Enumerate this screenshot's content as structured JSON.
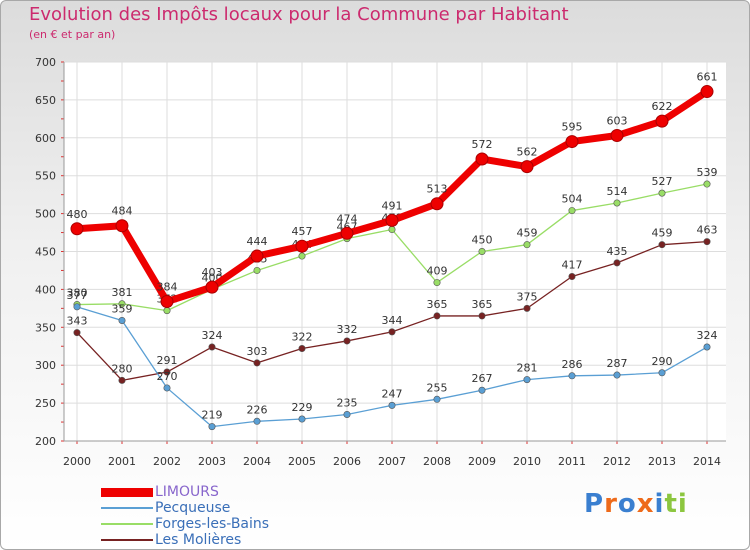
{
  "header": {
    "title": "Evolution des Impôts locaux pour la Commune par Habitant",
    "subtitle": "(en € et par an)"
  },
  "logo": {
    "text": "Proxiti"
  },
  "colors": {
    "title": "#cc2a6e",
    "limours": "#ee0000",
    "pecqueuse": "#5a9fd4",
    "forges": "#99dd66",
    "molieres": "#772222",
    "grid": "#dddddd"
  },
  "chart_data": {
    "type": "line",
    "title": "Evolution des Impôts locaux pour la Commune par Habitant",
    "subtitle": "(en € et par an)",
    "xlabel": "",
    "ylabel": "",
    "x": [
      "2000",
      "2001",
      "2002",
      "2003",
      "2004",
      "2005",
      "2006",
      "2007",
      "2008",
      "2009",
      "2010",
      "2011",
      "2012",
      "2013",
      "2014"
    ],
    "ylim": [
      200,
      700
    ],
    "yticks": [
      200,
      250,
      300,
      350,
      400,
      450,
      500,
      550,
      600,
      650,
      700
    ],
    "grid": true,
    "legend_position": "bottom-left",
    "series": [
      {
        "name": "LIMOURS",
        "color": "#ee0000",
        "values": [
          480,
          484,
          384,
          403,
          444,
          457,
          474,
          491,
          513,
          572,
          562,
          595,
          603,
          622,
          661
        ]
      },
      {
        "name": "Pecqueuse",
        "color": "#5a9fd4",
        "values": [
          377,
          359,
          270,
          219,
          226,
          229,
          235,
          247,
          255,
          267,
          281,
          286,
          287,
          290,
          324
        ]
      },
      {
        "name": "Forges-les-Bains",
        "color": "#99dd66",
        "values": [
          380,
          381,
          372,
          400,
          425,
          444,
          467,
          479,
          409,
          450,
          459,
          504,
          514,
          527,
          539
        ]
      },
      {
        "name": "Les Molières",
        "color": "#772222",
        "values": [
          343,
          280,
          291,
          324,
          303,
          322,
          332,
          344,
          365,
          365,
          375,
          417,
          435,
          459,
          463
        ]
      }
    ]
  }
}
